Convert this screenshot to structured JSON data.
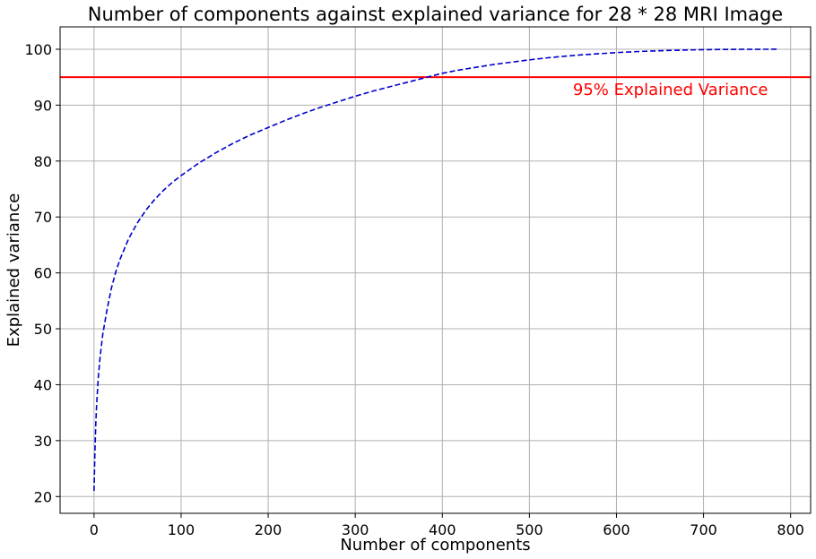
{
  "chart_data": {
    "type": "line",
    "title": "Number of components against explained variance for 28 * 28 MRI Image",
    "xlabel": "Number of components",
    "ylabel": "Explained variance",
    "xlim": [
      -39,
      823
    ],
    "ylim": [
      17,
      104
    ],
    "xticks": [
      0,
      100,
      200,
      300,
      400,
      500,
      600,
      700,
      800
    ],
    "yticks": [
      20,
      30,
      40,
      50,
      60,
      70,
      80,
      90,
      100
    ],
    "grid": true,
    "colors": {
      "curve": "#0000cc",
      "threshold": "#ff0000",
      "grid": "#b0b0b0"
    },
    "series": [
      {
        "style": "dashed",
        "x": [
          0,
          1,
          2,
          3,
          5,
          7,
          10,
          15,
          20,
          25,
          30,
          40,
          50,
          60,
          70,
          80,
          90,
          100,
          120,
          140,
          160,
          180,
          200,
          220,
          240,
          260,
          280,
          300,
          320,
          340,
          360,
          380,
          400,
          420,
          440,
          460,
          480,
          500,
          520,
          540,
          560,
          580,
          600,
          620,
          640,
          660,
          680,
          700,
          720,
          740,
          760,
          784
        ],
        "y": [
          21,
          28,
          33,
          36.5,
          41.5,
          45,
          49,
          53.5,
          57.3,
          60.2,
          62.5,
          66.2,
          69,
          71.3,
          73.2,
          74.8,
          76.2,
          77.4,
          79.6,
          81.5,
          83.2,
          84.7,
          86,
          87.3,
          88.5,
          89.6,
          90.6,
          91.6,
          92.5,
          93.3,
          94.1,
          94.9,
          95.7,
          96.3,
          96.8,
          97.3,
          97.7,
          98.1,
          98.45,
          98.75,
          99.0,
          99.2,
          99.4,
          99.55,
          99.68,
          99.78,
          99.86,
          99.92,
          99.96,
          99.98,
          99.99,
          100
        ]
      }
    ],
    "threshold": {
      "y": 95,
      "label": "95% Explained Variance",
      "label_x": 550
    }
  }
}
